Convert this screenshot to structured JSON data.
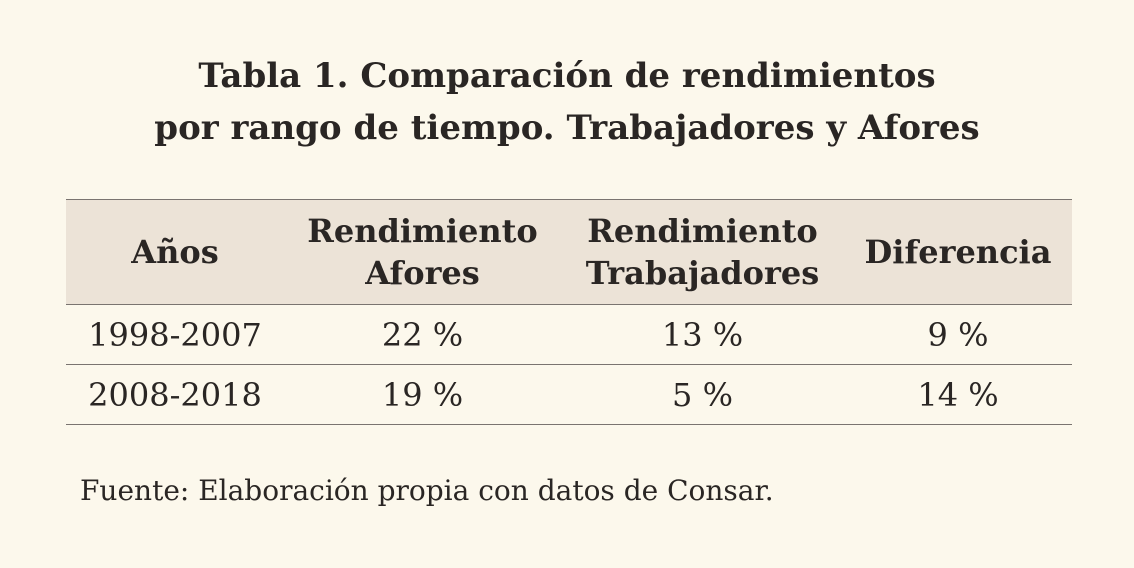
{
  "title": {
    "line1": "Tabla 1. Comparación de rendimientos",
    "line2": "por rango de tiempo. Trabajadores y Afores"
  },
  "table": {
    "headers": [
      {
        "lines": [
          "Años"
        ]
      },
      {
        "lines": [
          "Rendimiento",
          "Afores"
        ]
      },
      {
        "lines": [
          "Rendimiento",
          "Trabajadores"
        ]
      },
      {
        "lines": [
          "Diferencia"
        ]
      }
    ],
    "rows": [
      [
        "1998-2007",
        "22 %",
        "13 %",
        "9 %"
      ],
      [
        "2008-2018",
        "19 %",
        "5 %",
        "14 %"
      ]
    ]
  },
  "source": "Fuente: Elaboración propia con datos de Consar.",
  "colors": {
    "background": "#fcf8ec",
    "header_background": "#ece3d7",
    "rule": "#7a7470",
    "text": "#2a2624"
  }
}
